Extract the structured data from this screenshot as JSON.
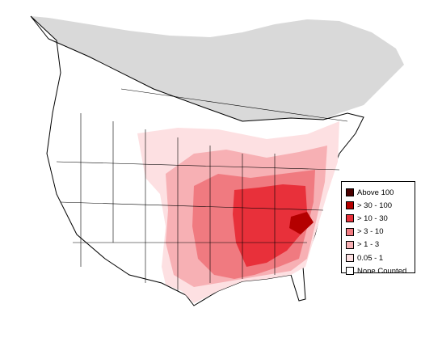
{
  "map": {
    "colors": {
      "outside": "#ffffff",
      "none_north": "#d9d9d9",
      "boundary": "#000000"
    }
  },
  "legend": {
    "items": [
      {
        "label": "Above 100",
        "color": "#4a0000"
      },
      {
        "label": "> 30 - 100",
        "color": "#b40000"
      },
      {
        "label": "> 10 - 30",
        "color": "#e8303a"
      },
      {
        "label": "> 3 - 10",
        "color": "#f07a80"
      },
      {
        "label": "> 1 - 3",
        "color": "#f7b0b4"
      },
      {
        "label": "0.05 - 1",
        "color": "#fde0e2"
      },
      {
        "label": "None Counted",
        "color": "#ffffff"
      }
    ]
  }
}
